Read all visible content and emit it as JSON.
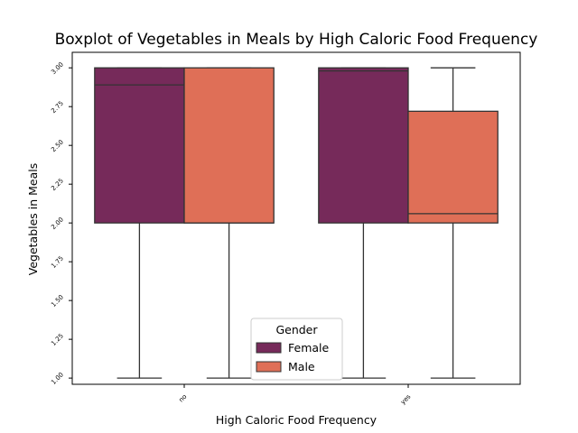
{
  "chart_data": {
    "type": "boxplot",
    "title": "Boxplot of Vegetables in Meals by High Caloric Food Frequency",
    "xlabel": "High Caloric Food Frequency",
    "ylabel": "Vegetables in Meals",
    "categories": [
      "no",
      "yes"
    ],
    "ylim": [
      0.96,
      3.1
    ],
    "yticks": [
      1.0,
      1.25,
      1.5,
      1.75,
      2.0,
      2.25,
      2.5,
      2.75,
      3.0
    ],
    "ytick_labels": [
      "1.00",
      "1.25",
      "1.50",
      "1.75",
      "2.00",
      "2.25",
      "2.50",
      "2.75",
      "3.00"
    ],
    "grid": false,
    "legend": {
      "title": "Gender",
      "position": "lower-center"
    },
    "series": [
      {
        "name": "Female",
        "color": "#762a5a",
        "boxes": [
          {
            "category": "no",
            "whisker_low": 1.0,
            "q1": 2.0,
            "median": 2.89,
            "q3": 3.0,
            "whisker_high": 3.0
          },
          {
            "category": "yes",
            "whisker_low": 1.0,
            "q1": 2.0,
            "median": 2.98,
            "q3": 3.0,
            "whisker_high": 3.0
          }
        ]
      },
      {
        "name": "Male",
        "color": "#df6f57",
        "boxes": [
          {
            "category": "no",
            "whisker_low": 1.0,
            "q1": 2.0,
            "median": 2.0,
            "q3": 3.0,
            "whisker_high": 3.0
          },
          {
            "category": "yes",
            "whisker_low": 1.0,
            "q1": 2.0,
            "median": 2.06,
            "q3": 2.72,
            "whisker_high": 3.0
          }
        ]
      }
    ]
  }
}
